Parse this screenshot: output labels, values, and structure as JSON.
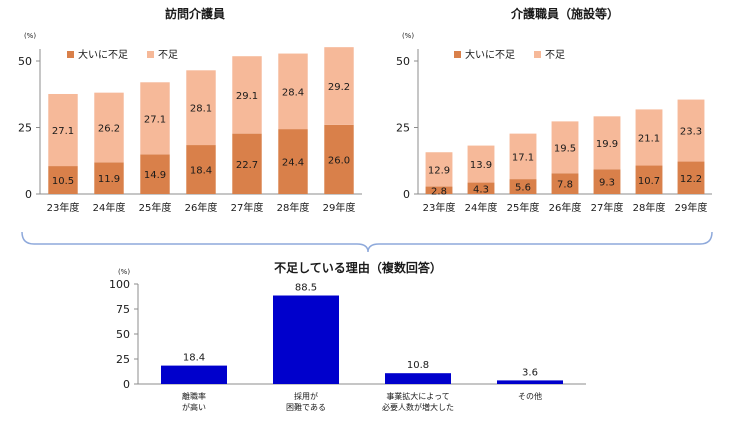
{
  "colors": {
    "dark_orange": "#d9804a",
    "light_orange": "#f6b999",
    "bar_blue": "#0000cc",
    "axis": "#8c8c8c",
    "brace": "#8ea9db",
    "text": "#1a1a1a"
  },
  "chart_data": [
    {
      "type": "bar",
      "stacked": true,
      "title": "訪問介護員",
      "unit_label": "(%)",
      "categories": [
        "23年度",
        "24年度",
        "25年度",
        "26年度",
        "27年度",
        "28年度",
        "29年度"
      ],
      "series": [
        {
          "name": "大いに不足",
          "color": "#d9804a",
          "values": [
            10.5,
            11.9,
            14.9,
            18.4,
            22.7,
            24.4,
            26.0
          ],
          "labels": [
            "10.5",
            "11.9",
            "14.9",
            "18.4",
            "22.7",
            "24.4",
            "26.0"
          ]
        },
        {
          "name": "不足",
          "color": "#f6b999",
          "values": [
            27.1,
            26.2,
            27.1,
            28.1,
            29.1,
            28.4,
            29.2
          ],
          "labels": [
            "27.1",
            "26.2",
            "27.1",
            "28.1",
            "29.1",
            "28.4",
            "29.2"
          ]
        }
      ],
      "yticks": [
        "0",
        "25",
        "50"
      ],
      "ylim": [
        0,
        56
      ],
      "legend": "top-left"
    },
    {
      "type": "bar",
      "stacked": true,
      "title": "介護職員（施設等）",
      "unit_label": "(%)",
      "categories": [
        "23年度",
        "24年度",
        "25年度",
        "26年度",
        "27年度",
        "28年度",
        "29年度"
      ],
      "series": [
        {
          "name": "大いに不足",
          "color": "#d9804a",
          "values": [
            2.8,
            4.3,
            5.6,
            7.8,
            9.3,
            10.7,
            12.2
          ],
          "labels": [
            "2.8",
            "4.3",
            "5.6",
            "7.8",
            "9.3",
            "10.7",
            "12.2"
          ]
        },
        {
          "name": "不足",
          "color": "#f6b999",
          "values": [
            12.9,
            13.9,
            17.1,
            19.5,
            19.9,
            21.1,
            23.3
          ],
          "labels": [
            "12.9",
            "13.9",
            "17.1",
            "19.5",
            "19.9",
            "21.1",
            "23.3"
          ]
        }
      ],
      "yticks": [
        "0",
        "25",
        "50"
      ],
      "ylim": [
        0,
        56
      ],
      "legend": "top-left"
    },
    {
      "type": "bar",
      "title": "不足している理由（複数回答）",
      "unit_label": "(%)",
      "categories": [
        [
          "離職率",
          "が高い"
        ],
        [
          "採用が",
          "困難である"
        ],
        [
          "事業拡大によって",
          "必要人数が増大した"
        ],
        [
          "その他"
        ]
      ],
      "values": [
        18.4,
        88.5,
        10.8,
        3.6
      ],
      "labels": [
        "18.4",
        "88.5",
        "10.8",
        "3.6"
      ],
      "yticks": [
        "0",
        "25",
        "50",
        "75",
        "100"
      ],
      "ylim": [
        0,
        100
      ]
    }
  ]
}
